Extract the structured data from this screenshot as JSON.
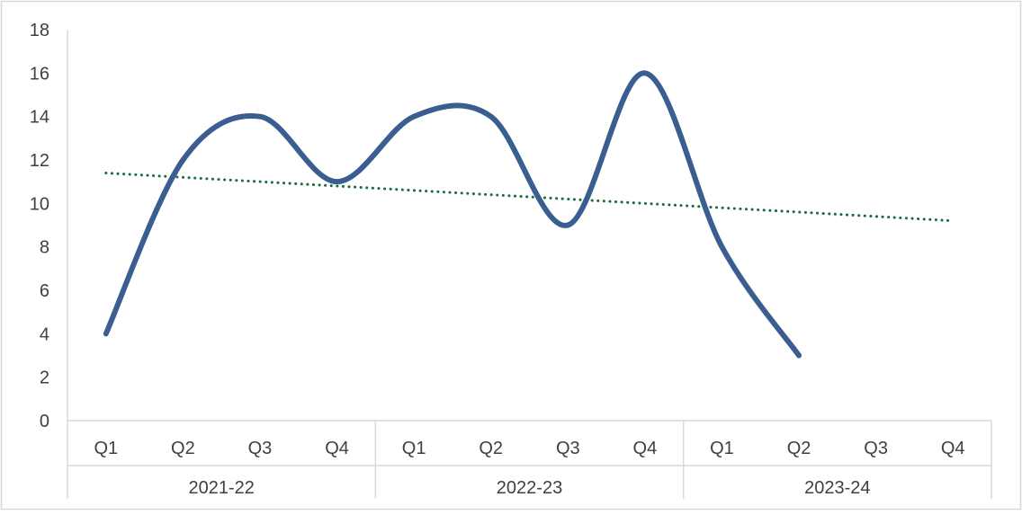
{
  "chart_data": {
    "type": "line",
    "title": "",
    "xlabel": "",
    "ylabel": "",
    "ylim": [
      0,
      18
    ],
    "y_ticks": [
      0,
      2,
      4,
      6,
      8,
      10,
      12,
      14,
      16,
      18
    ],
    "grid": false,
    "legend": "none",
    "groups": [
      {
        "label": "2021-22",
        "categories": [
          "Q1",
          "Q2",
          "Q3",
          "Q4"
        ]
      },
      {
        "label": "2022-23",
        "categories": [
          "Q1",
          "Q2",
          "Q3",
          "Q4"
        ]
      },
      {
        "label": "2023-24",
        "categories": [
          "Q1",
          "Q2",
          "Q3",
          "Q4"
        ]
      }
    ],
    "series": [
      {
        "values": [
          4,
          12,
          14,
          11,
          14,
          14,
          9,
          16,
          8,
          3,
          null,
          null
        ],
        "color": "#3b5e91",
        "smooth": true
      }
    ],
    "trendline": {
      "type": "linear",
      "style": "dotted",
      "color": "#1a6e3c",
      "start": 11.4,
      "end": 9.2
    }
  }
}
